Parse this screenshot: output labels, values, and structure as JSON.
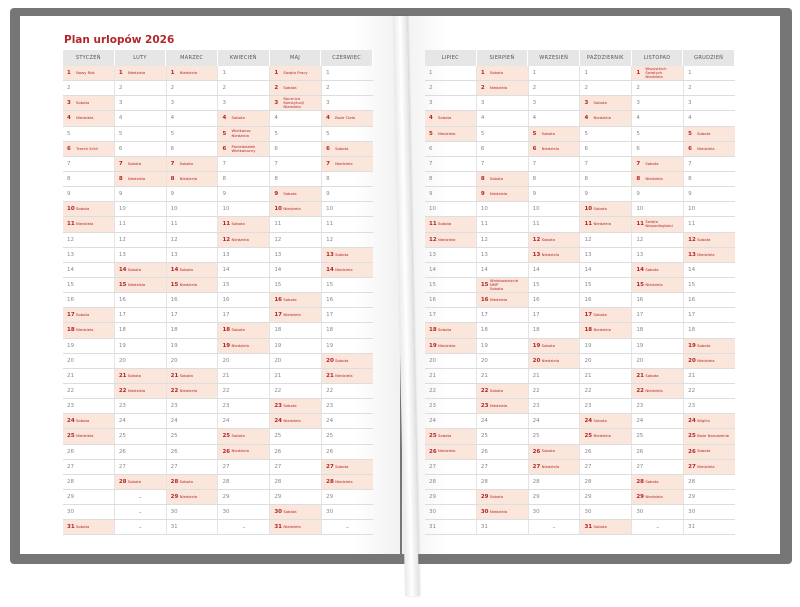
{
  "left_page": {
    "title": "Plan urlopów 2026"
  },
  "colors": {
    "accent": "#b3262a",
    "highlight": "#fbe6dc",
    "cover": "#767676"
  },
  "day_numbers": [
    "1",
    "2",
    "3",
    "4",
    "5",
    "6",
    "7",
    "8",
    "9",
    "10",
    "11",
    "12",
    "13",
    "14",
    "15",
    "16",
    "17",
    "18",
    "19",
    "20",
    "21",
    "22",
    "23",
    "24",
    "25",
    "26",
    "27",
    "28",
    "29",
    "30",
    "31"
  ],
  "months": [
    {
      "name": "STYCZEŃ",
      "labels": [
        "Nowy Rok",
        "",
        "Sobota",
        "Niedziela",
        "",
        "Trzech Króli",
        "",
        "",
        "",
        "Sobota",
        "Niedziela",
        "",
        "",
        "",
        "",
        "",
        "Sobota",
        "Niedziela",
        "",
        "",
        "",
        "",
        "",
        "Sobota",
        "Niedziela",
        "",
        "",
        "",
        "",
        "",
        "Sobota"
      ]
    },
    {
      "name": "LUTY",
      "labels": [
        "Niedziela",
        "",
        "",
        "",
        "",
        "",
        "Sobota",
        "Niedziela",
        "",
        "",
        "",
        "",
        "",
        "Sobota",
        "Niedziela",
        "",
        "",
        "",
        "",
        "",
        "Sobota",
        "Niedziela",
        "",
        "",
        "",
        "",
        "",
        "Sobota",
        "–",
        "–",
        "–"
      ]
    },
    {
      "name": "MARZEC",
      "labels": [
        "Niedziela",
        "",
        "",
        "",
        "",
        "",
        "Sobota",
        "Niedziela",
        "",
        "",
        "",
        "",
        "",
        "Sobota",
        "Niedziela",
        "",
        "",
        "",
        "",
        "",
        "Sobota",
        "Niedziela",
        "",
        "",
        "",
        "",
        "",
        "Sobota",
        "Niedziela",
        "",
        ""
      ]
    },
    {
      "name": "KWIECIEŃ",
      "labels": [
        "",
        "",
        "",
        "Sobota",
        "Wielkanoc\nNiedziela",
        "Poniedziałek\nWielkanocny",
        "",
        "",
        "",
        "",
        "Sobota",
        "Niedziela",
        "",
        "",
        "",
        "",
        "",
        "Sobota",
        "Niedziela",
        "",
        "",
        "",
        "",
        "",
        "Sobota",
        "Niedziela",
        "",
        "",
        "",
        "",
        "–"
      ]
    },
    {
      "name": "MAJ",
      "labels": [
        "Święto Pracy",
        "Sobota",
        "Rocznica Konstytucji\nNiedziela",
        "",
        "",
        "",
        "",
        "",
        "Sobota",
        "Niedziela",
        "",
        "",
        "",
        "",
        "",
        "Sobota",
        "Niedziela",
        "",
        "",
        "",
        "",
        "",
        "Sobota",
        "Niedziela",
        "",
        "",
        "",
        "",
        "",
        "Sobota",
        "Niedziela"
      ]
    },
    {
      "name": "CZERWIEC",
      "labels": [
        "",
        "",
        "",
        "Boże Ciało",
        "",
        "Sobota",
        "Niedziela",
        "",
        "",
        "",
        "",
        "",
        "Sobota",
        "Niedziela",
        "",
        "",
        "",
        "",
        "",
        "Sobota",
        "Niedziela",
        "",
        "",
        "",
        "",
        "",
        "Sobota",
        "Niedziela",
        "",
        "",
        "–"
      ]
    },
    {
      "name": "LIPIEC",
      "labels": [
        "",
        "",
        "",
        "Sobota",
        "Niedziela",
        "",
        "",
        "",
        "",
        "",
        "Sobota",
        "Niedziela",
        "",
        "",
        "",
        "",
        "",
        "Sobota",
        "Niedziela",
        "",
        "",
        "",
        "",
        "",
        "Sobota",
        "Niedziela",
        "",
        "",
        "",
        "",
        ""
      ]
    },
    {
      "name": "SIERPIEŃ",
      "labels": [
        "Sobota",
        "Niedziela",
        "",
        "",
        "",
        "",
        "",
        "Sobota",
        "Niedziela",
        "",
        "",
        "",
        "",
        "",
        "Wniebowzięcie NMP\nSobota",
        "Niedziela",
        "",
        "",
        "",
        "",
        "",
        "Sobota",
        "Niedziela",
        "",
        "",
        "",
        "",
        "",
        "Sobota",
        "Niedziela",
        ""
      ]
    },
    {
      "name": "WRZESIEŃ",
      "labels": [
        "",
        "",
        "",
        "",
        "Sobota",
        "Niedziela",
        "",
        "",
        "",
        "",
        "",
        "Sobota",
        "Niedziela",
        "",
        "",
        "",
        "",
        "",
        "Sobota",
        "Niedziela",
        "",
        "",
        "",
        "",
        "",
        "Sobota",
        "Niedziela",
        "",
        "",
        "",
        "–"
      ]
    },
    {
      "name": "PAŹDZIERNIK",
      "labels": [
        "",
        "",
        "Sobota",
        "Niedziela",
        "",
        "",
        "",
        "",
        "",
        "Sobota",
        "Niedziela",
        "",
        "",
        "",
        "",
        "",
        "Sobota",
        "Niedziela",
        "",
        "",
        "",
        "",
        "",
        "Sobota",
        "Niedziela",
        "",
        "",
        "",
        "",
        "",
        "Sobota"
      ]
    },
    {
      "name": "LISTOPAD",
      "labels": [
        "Wszystkich Świętych\nNiedziela",
        "",
        "",
        "",
        "",
        "",
        "Sobota",
        "Niedziela",
        "",
        "",
        "Święto Niepodległości",
        "",
        "",
        "Sobota",
        "Niedziela",
        "",
        "",
        "",
        "",
        "",
        "Sobota",
        "Niedziela",
        "",
        "",
        "",
        "",
        "",
        "Sobota",
        "Niedziela",
        "",
        "–"
      ]
    },
    {
      "name": "GRUDZIEŃ",
      "labels": [
        "",
        "",
        "",
        "",
        "Sobota",
        "Niedziela",
        "",
        "",
        "",
        "",
        "",
        "Sobota",
        "Niedziela",
        "",
        "",
        "",
        "",
        "",
        "Sobota",
        "Niedziela",
        "",
        "",
        "",
        "Wigilia",
        "Boże Narodzenie",
        "Sobota",
        "Niedziela",
        "",
        "",
        "",
        ""
      ]
    }
  ]
}
